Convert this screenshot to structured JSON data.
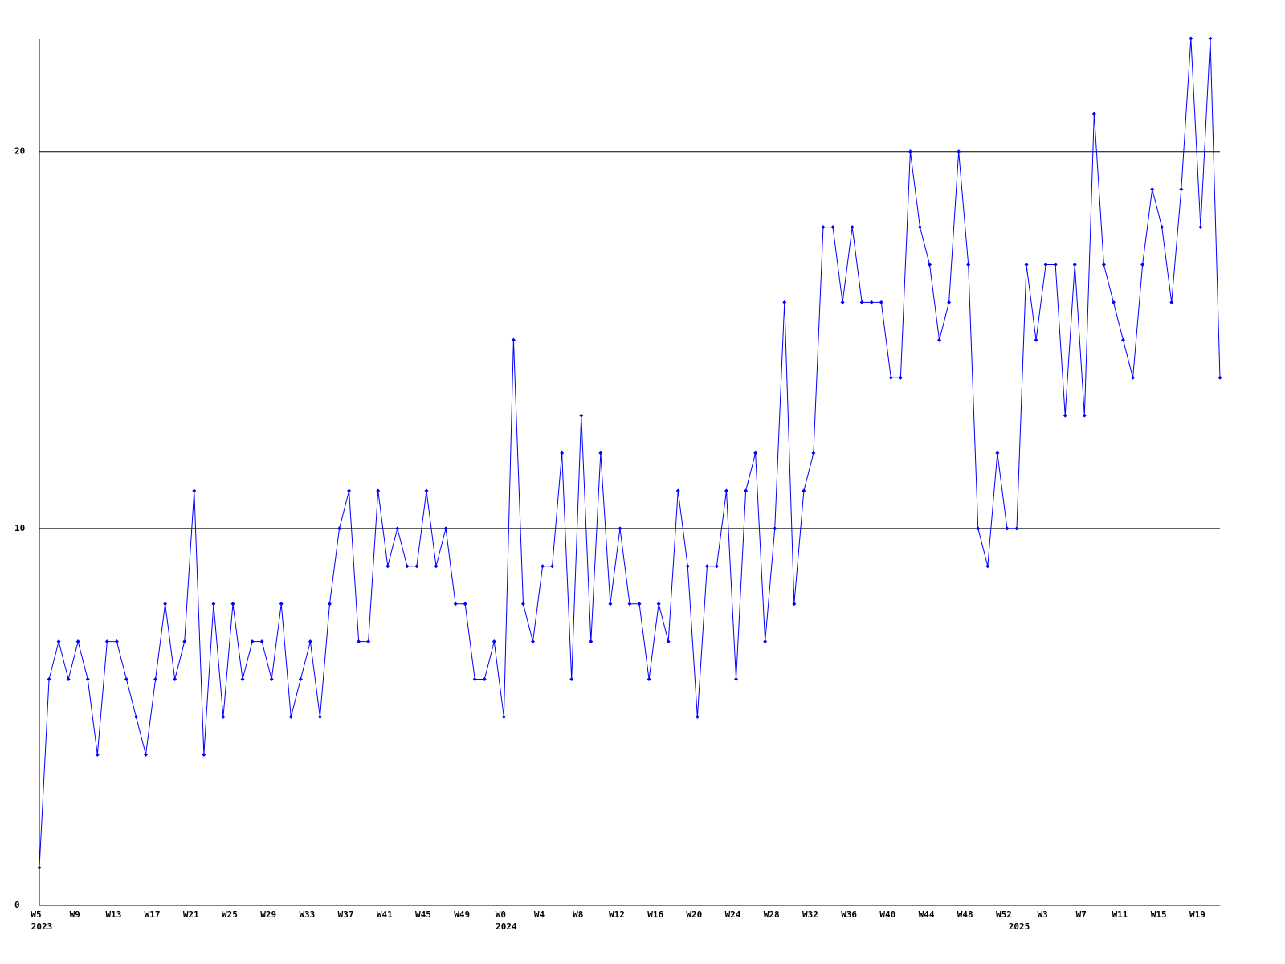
{
  "chart_data": {
    "type": "line",
    "color": "#0000ff",
    "grid": true,
    "ylim": [
      0,
      23
    ],
    "yticks": [
      0,
      10,
      20
    ],
    "values": [
      1,
      6,
      7,
      6,
      7,
      6,
      4,
      7,
      7,
      6,
      5,
      4,
      6,
      8,
      6,
      7,
      11,
      4,
      8,
      5,
      8,
      6,
      7,
      7,
      6,
      8,
      5,
      6,
      7,
      5,
      8,
      10,
      11,
      7,
      7,
      11,
      9,
      10,
      9,
      9,
      11,
      9,
      10,
      8,
      8,
      6,
      6,
      7,
      5,
      15,
      8,
      7,
      9,
      9,
      12,
      6,
      13,
      7,
      12,
      8,
      10,
      8,
      8,
      6,
      8,
      7,
      11,
      9,
      5,
      9,
      9,
      11,
      6,
      11,
      12,
      7,
      10,
      16,
      8,
      11,
      12,
      18,
      18,
      16,
      18,
      16,
      16,
      16,
      14,
      14,
      20,
      18,
      17,
      15,
      16,
      20,
      17,
      10,
      9,
      12,
      10,
      10,
      17,
      15,
      17,
      17,
      13,
      17,
      13,
      21,
      17,
      16,
      15,
      14,
      17,
      19,
      18,
      16,
      19,
      23,
      18,
      23,
      14
    ],
    "categories": [
      "W5",
      null,
      null,
      null,
      "W9",
      null,
      null,
      null,
      "W13",
      null,
      null,
      null,
      "W17",
      null,
      null,
      null,
      "W21",
      null,
      null,
      null,
      "W25",
      null,
      null,
      null,
      "W29",
      null,
      null,
      null,
      "W33",
      null,
      null,
      null,
      "W37",
      null,
      null,
      null,
      "W41",
      null,
      null,
      null,
      "W45",
      null,
      null,
      null,
      "W49",
      null,
      null,
      null,
      "W0",
      null,
      null,
      null,
      "W4",
      null,
      null,
      null,
      "W8",
      null,
      null,
      null,
      "W12",
      null,
      null,
      null,
      "W16",
      null,
      null,
      null,
      "W20",
      null,
      null,
      null,
      "W24",
      null,
      null,
      null,
      "W28",
      null,
      null,
      null,
      "W32",
      null,
      null,
      null,
      "W36",
      null,
      null,
      null,
      "W40",
      null,
      null,
      null,
      "W44",
      null,
      null,
      null,
      "W48",
      null,
      null,
      null,
      "W52",
      null,
      null,
      null,
      "W3",
      null,
      null,
      null,
      "W7",
      null,
      null,
      null,
      "W11",
      null,
      null,
      null,
      "W15",
      null,
      null,
      null,
      "W19",
      null,
      null
    ],
    "category_years": [
      "2023",
      null,
      null,
      null,
      null,
      null,
      null,
      null,
      null,
      null,
      null,
      null,
      null,
      null,
      null,
      null,
      null,
      null,
      null,
      null,
      null,
      null,
      null,
      null,
      null,
      null,
      null,
      null,
      null,
      null,
      null,
      null,
      null,
      null,
      null,
      null,
      null,
      null,
      null,
      null,
      null,
      null,
      null,
      null,
      null,
      null,
      null,
      null,
      "2024",
      null,
      null,
      null,
      null,
      null,
      null,
      null,
      null,
      null,
      null,
      null,
      null,
      null,
      null,
      null,
      null,
      null,
      null,
      null,
      null,
      null,
      null,
      null,
      null,
      null,
      null,
      null,
      null,
      null,
      null,
      null,
      null,
      null,
      null,
      null,
      null,
      null,
      null,
      null,
      null,
      null,
      null,
      null,
      null,
      null,
      null,
      null,
      null,
      null,
      null,
      null,
      null,
      "2025",
      null,
      null,
      null,
      null,
      null,
      null,
      null,
      null,
      null,
      null,
      null,
      null,
      null,
      null,
      null,
      null,
      null,
      null,
      null,
      null
    ]
  }
}
